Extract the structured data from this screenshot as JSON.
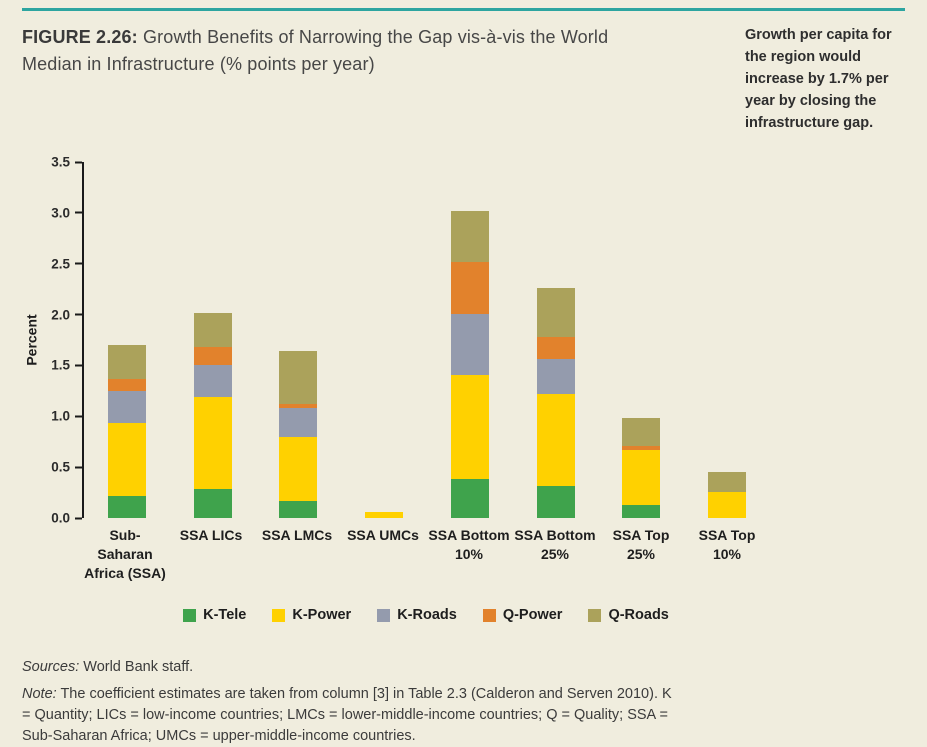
{
  "header": {
    "figure_label": "FIGURE 2.26:",
    "title": "Growth Benefits of Narrowing the Gap vis-à-vis the World Median in Infrastructure (% points per year)",
    "side_note": "Growth per capita for the region would increase by 1.7% per year by closing the infrastructure gap."
  },
  "chart_data": {
    "type": "bar",
    "stacked": true,
    "title": "Growth Benefits of Narrowing the Gap vis-à-vis the World Median in Infrastructure (% points per year)",
    "xlabel": "",
    "ylabel": "Percent",
    "ylim": [
      0,
      3.5
    ],
    "ytick_step": 0.5,
    "yticks": [
      "0.0",
      "0.5",
      "1.0",
      "1.5",
      "2.0",
      "2.5",
      "3.0",
      "3.5"
    ],
    "grid": false,
    "legend_position": "bottom",
    "categories": [
      "Sub-Saharan\nAfrica (SSA)",
      "SSA LICs",
      "SSA LMCs",
      "SSA UMCs",
      "SSA Bottom\n10%",
      "SSA Bottom\n25%",
      "SSA Top\n25%",
      "SSA Top\n10%"
    ],
    "series": [
      {
        "name": "K-Tele",
        "color": "#3fa34c",
        "values": [
          0.22,
          0.29,
          0.17,
          0.0,
          0.38,
          0.31,
          0.13,
          0.0
        ]
      },
      {
        "name": "K-Power",
        "color": "#ffd100",
        "values": [
          0.71,
          0.9,
          0.63,
          0.06,
          1.03,
          0.91,
          0.54,
          0.26
        ]
      },
      {
        "name": "K-Roads",
        "color": "#949bad",
        "values": [
          0.32,
          0.31,
          0.28,
          0.0,
          0.6,
          0.34,
          0.0,
          0.0
        ]
      },
      {
        "name": "Q-Power",
        "color": "#e2822c",
        "values": [
          0.12,
          0.18,
          0.04,
          0.0,
          0.51,
          0.22,
          0.04,
          0.0
        ]
      },
      {
        "name": "Q-Roads",
        "color": "#aba25b",
        "values": [
          0.33,
          0.34,
          0.52,
          0.0,
          0.5,
          0.48,
          0.27,
          0.19
        ]
      }
    ],
    "totals": [
      1.7,
      2.02,
      1.64,
      0.06,
      3.02,
      2.26,
      0.98,
      0.45
    ]
  },
  "footer": {
    "sources_label": "Sources:",
    "sources_text": "World Bank staff.",
    "note_label": "Note:",
    "note_text": "The coefficient estimates are taken from column [3] in Table 2.3 (Calderon and Serven 2010). K = Quantity; LICs = low-income countries; LMCs = lower-middle-income countries; Q = Quality; SSA = Sub-Saharan Africa; UMCs = upper-middle-income countries."
  },
  "colors": {
    "background": "#f0edde",
    "accent_teal": "#2da5a0"
  }
}
